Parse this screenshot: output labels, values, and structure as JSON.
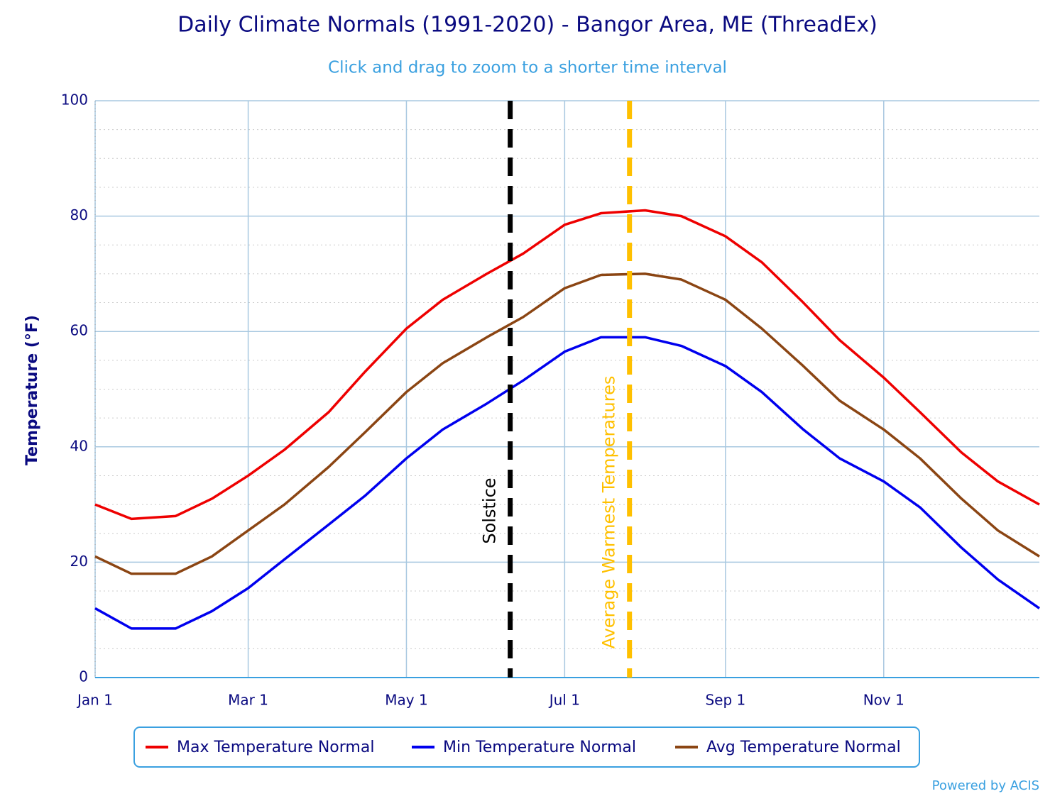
{
  "chart_data": {
    "type": "line",
    "title": "Daily Climate Normals (1991-2020) - Bangor Area, ME (ThreadEx)",
    "subtitle": "Click and drag to zoom to a shorter time interval",
    "ylabel": "Temperature (°F)",
    "credit": "Powered by ACIS",
    "x": [
      "Jan 1",
      "Jan 15",
      "Feb 1",
      "Feb 15",
      "Mar 1",
      "Mar 15",
      "Apr 1",
      "Apr 15",
      "May 1",
      "May 15",
      "Jun 1",
      "Jun 15",
      "Jul 1",
      "Jul 15",
      "Aug 1",
      "Aug 15",
      "Sep 1",
      "Sep 15",
      "Oct 1",
      "Oct 15",
      "Nov 1",
      "Nov 15",
      "Dec 1",
      "Dec 15",
      "Dec 31"
    ],
    "xlim": [
      "Jan 1",
      "Dec 31"
    ],
    "xticks": [
      "Jan 1",
      "Mar 1",
      "May 1",
      "Jul 1",
      "Sep 1",
      "Nov 1"
    ],
    "ylim": [
      0,
      100
    ],
    "yticks": [
      0,
      20,
      40,
      60,
      80,
      100
    ],
    "grid": true,
    "series": [
      {
        "name": "Max Temperature Normal",
        "color": "#ee0000",
        "values": [
          30,
          27.5,
          28,
          31,
          35,
          39.5,
          46,
          53,
          60.5,
          65.5,
          70,
          73.5,
          78.5,
          80.5,
          81,
          80,
          76.5,
          72,
          65,
          58.5,
          52,
          46,
          39,
          34,
          30
        ]
      },
      {
        "name": "Min Temperature Normal",
        "color": "#0000ee",
        "values": [
          12,
          8.5,
          8.5,
          11.5,
          15.5,
          20.5,
          26.5,
          31.5,
          38,
          43,
          47.5,
          51.5,
          56.5,
          59,
          59,
          57.5,
          54,
          49.5,
          43,
          38,
          34,
          29.5,
          22.5,
          17,
          12
        ]
      },
      {
        "name": "Avg Temperature Normal",
        "color": "#8b4513",
        "values": [
          21,
          18,
          18,
          21,
          25.5,
          30,
          36.5,
          42.5,
          49.5,
          54.5,
          59,
          62.5,
          67.5,
          69.8,
          70,
          69,
          65.5,
          60.5,
          54,
          48,
          43,
          38,
          31,
          25.5,
          21
        ]
      }
    ],
    "annotations": [
      {
        "x": "Jun 10",
        "label": "Solstice",
        "color": "#000000"
      },
      {
        "x": "Jul 26",
        "label": "Average Warmest Temperatures",
        "color": "#ffc000"
      }
    ]
  }
}
